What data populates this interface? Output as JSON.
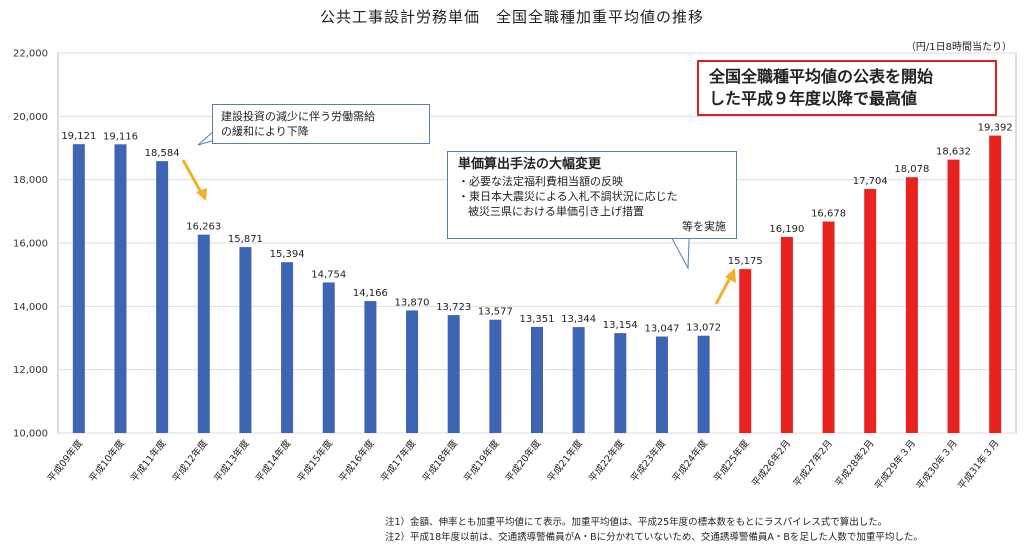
{
  "title": "公共工事設計労務単価　全国全職種加重平均値の推移",
  "unit": "（円/1日8時間当たり）",
  "callouts": {
    "c1": {
      "line1": "建設投資の減少に伴う労働需給",
      "line2": "の緩和により下降"
    },
    "c2": {
      "heading": "単価算出手法の大幅変更",
      "line1": "・必要な法定福利費相当額の反映",
      "line2": "・東日本大震災による入札不調状況に応じた",
      "line3": "被災三県における単価引き上げ措置",
      "line4": "等を実施"
    },
    "c3": {
      "line1": "全国全職種平均値の公表を開始",
      "line2": "した平成９年度以降で最高値"
    }
  },
  "notes": {
    "n1": "注1）金額、伸率とも加重平均値にて表示。加重平均値は、平成25年度の標本数をもとにラスパイレス式で算出した。",
    "n2": "注2）平成18年度以前は、交通誘導警備員がA・Bに分かれていないため、交通誘導警備員A・Bを足した人数で加重平均した。"
  },
  "colors": {
    "blue": "#3e64b4",
    "red": "#e8231f",
    "arrow": "#f1b12a"
  },
  "chart_data": {
    "type": "bar",
    "ylim": [
      10000,
      22000
    ],
    "yticks": [
      "10,000",
      "12,000",
      "14,000",
      "16,000",
      "18,000",
      "20,000",
      "22,000"
    ],
    "categories": [
      "平成09年度",
      "平成10年度",
      "平成11年度",
      "平成12年度",
      "平成13年度",
      "平成14年度",
      "平成15年度",
      "平成16年度",
      "平成17年度",
      "平成18年度",
      "平成19年度",
      "平成20年度",
      "平成21年度",
      "平成22年度",
      "平成23年度",
      "平成24年度",
      "平成25年度",
      "平成26年2月",
      "平成27年2月",
      "平成28年2月",
      "平成29年３月",
      "平成30年３月",
      "平成31年３月"
    ],
    "values": [
      19121,
      19116,
      18584,
      16263,
      15871,
      15394,
      14754,
      14166,
      13870,
      13723,
      13577,
      13351,
      13344,
      13154,
      13047,
      13072,
      15175,
      16190,
      16678,
      17704,
      18078,
      18632,
      19392
    ],
    "value_labels": [
      "19,121",
      "19,116",
      "18,584",
      "16,263",
      "15,871",
      "15,394",
      "14,754",
      "14,166",
      "13,870",
      "13,723",
      "13,577",
      "13,351",
      "13,344",
      "13,154",
      "13,047",
      "13,072",
      "15,175",
      "16,190",
      "16,678",
      "17,704",
      "18,078",
      "18,632",
      "19,392"
    ],
    "bar_colors": [
      "#3e64b4",
      "#3e64b4",
      "#3e64b4",
      "#3e64b4",
      "#3e64b4",
      "#3e64b4",
      "#3e64b4",
      "#3e64b4",
      "#3e64b4",
      "#3e64b4",
      "#3e64b4",
      "#3e64b4",
      "#3e64b4",
      "#3e64b4",
      "#3e64b4",
      "#3e64b4",
      "#e8231f",
      "#e8231f",
      "#e8231f",
      "#e8231f",
      "#e8231f",
      "#e8231f",
      "#e8231f"
    ]
  }
}
